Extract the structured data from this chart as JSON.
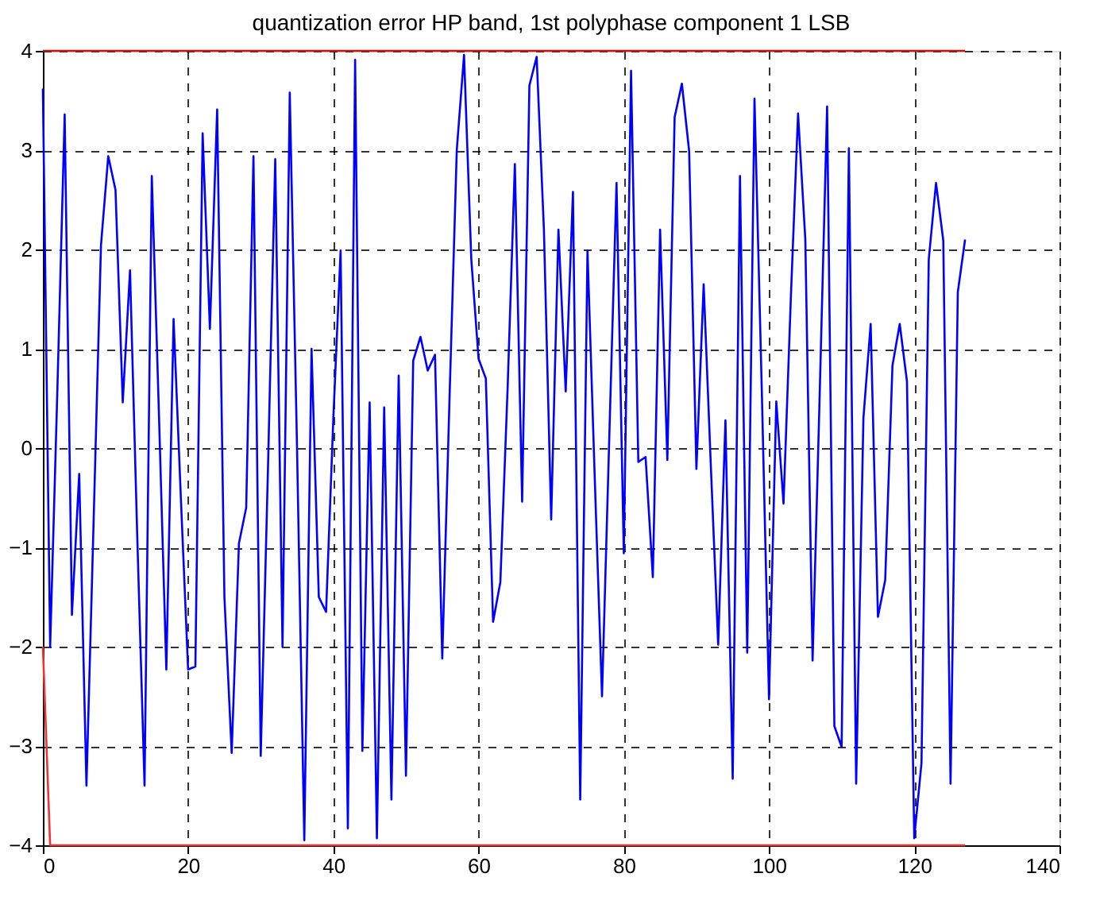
{
  "chart_data": {
    "type": "line",
    "title": "quantization error HP band, 1st polyphase component 1 LSB",
    "xlim": [
      0,
      140
    ],
    "xticks": [
      0,
      20,
      40,
      60,
      80,
      100,
      120,
      140
    ],
    "ylim": [
      -4,
      4
    ],
    "yticks": [
      -4,
      -3,
      -2,
      -1,
      0,
      1,
      2,
      3,
      4
    ],
    "grid": true,
    "legend": false,
    "marker": "none",
    "line_style": "solid",
    "series": [
      {
        "color": "#cc1111",
        "x": [
          0,
          127
        ],
        "values": [
          4,
          4
        ]
      },
      {
        "color": "#ee3333",
        "x": [
          0,
          1,
          127
        ],
        "values": [
          -2,
          -4,
          -4
        ]
      },
      {
        "color": "#0000ff",
        "x": [
          0,
          1,
          2,
          3,
          4,
          5,
          6,
          7,
          8,
          9,
          10,
          11,
          12,
          13,
          14,
          15,
          16,
          17,
          18,
          19,
          20,
          21,
          22,
          23,
          24,
          25,
          26,
          27,
          28,
          29,
          30,
          31,
          32,
          33,
          34,
          35,
          36,
          37,
          38,
          39,
          40,
          41,
          42,
          43,
          44,
          45,
          46,
          47,
          48,
          49,
          50,
          51,
          52,
          53,
          54,
          55,
          56,
          57,
          58,
          59,
          60,
          61,
          62,
          63,
          64,
          65,
          66,
          67,
          68,
          69,
          70,
          71,
          72,
          73,
          74,
          75,
          76,
          77,
          78,
          79,
          80,
          81,
          82,
          83,
          84,
          85,
          86,
          87,
          88,
          89,
          90,
          91,
          92,
          93,
          94,
          95,
          96,
          97,
          98,
          99,
          100,
          101,
          102,
          103,
          104,
          105,
          106,
          107,
          108,
          109,
          110,
          111,
          112,
          113,
          114,
          115,
          116,
          117,
          118,
          119,
          120,
          121,
          122,
          123,
          124,
          125,
          126,
          127
        ],
        "values": [
          3.62,
          -2.0,
          0.6,
          3.36,
          -1.68,
          -0.26,
          -3.4,
          -0.7,
          2.04,
          2.94,
          2.6,
          0.46,
          1.79,
          -0.9,
          -3.4,
          2.74,
          0.3,
          -2.23,
          1.3,
          -0.5,
          -2.23,
          -2.2,
          3.17,
          1.2,
          3.41,
          -1.5,
          -3.07,
          -0.96,
          -0.6,
          2.94,
          -3.1,
          -0.2,
          2.91,
          -2.0,
          3.58,
          0.0,
          -3.95,
          1.0,
          -1.5,
          -1.65,
          0.3,
          1.99,
          -3.83,
          3.91,
          -3.05,
          0.46,
          -3.93,
          0.41,
          -3.54,
          0.73,
          -3.3,
          0.88,
          1.12,
          0.78,
          0.94,
          -2.12,
          0.5,
          3.0,
          3.96,
          1.9,
          0.9,
          0.7,
          -1.75,
          -1.35,
          0.6,
          2.86,
          -0.54,
          3.65,
          3.94,
          2.2,
          -0.72,
          2.2,
          0.57,
          2.58,
          -3.54,
          1.99,
          -0.3,
          -2.5,
          0.1,
          2.67,
          -1.06,
          3.8,
          -0.14,
          -0.09,
          -1.3,
          2.2,
          -0.12,
          3.33,
          3.67,
          2.99,
          -0.21,
          1.65,
          -0.2,
          -1.98,
          0.28,
          -3.33,
          2.74,
          -2.06,
          3.52,
          0.6,
          -2.53,
          0.47,
          -0.56,
          1.5,
          3.37,
          2.1,
          -2.14,
          0.6,
          3.44,
          -2.8,
          -3.01,
          3.02,
          -3.38,
          0.3,
          1.25,
          -1.7,
          -1.33,
          0.83,
          1.25,
          0.67,
          -3.93,
          -3.17,
          1.9,
          2.67,
          2.09,
          -3.38,
          1.57,
          2.1
        ]
      }
    ]
  }
}
